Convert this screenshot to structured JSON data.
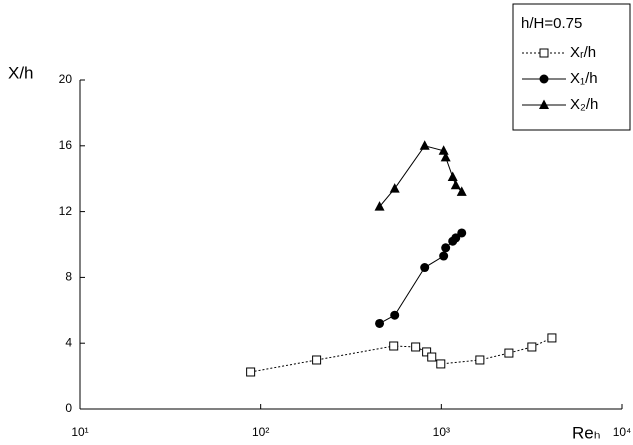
{
  "chart_data": {
    "type": "line",
    "xscale": "log",
    "grid": false,
    "xlabel": "Reₕ",
    "ylabel": "X/h",
    "legend_title": "h/H=0.75",
    "legend": "upper right",
    "xlim": [
      10,
      10000
    ],
    "ylim": [
      0,
      20
    ],
    "xticks": [
      {
        "value": 10,
        "label": "10¹"
      },
      {
        "value": 100,
        "label": "10²"
      },
      {
        "value": 1000,
        "label": "10³"
      },
      {
        "value": 10000,
        "label": "10⁴"
      }
    ],
    "yticks": [
      0,
      4,
      8,
      12,
      16,
      20
    ],
    "series": [
      {
        "name": "Xᵣ/h",
        "color": "#000000",
        "marker": "open-square",
        "linestyle": "dotted",
        "x": [
          88,
          204,
          545,
          721,
          829,
          885,
          993,
          1634,
          2366,
          3170,
          4093
        ],
        "values": [
          2.25,
          2.98,
          3.83,
          3.77,
          3.47,
          3.16,
          2.74,
          2.98,
          3.4,
          3.77,
          4.32
        ]
      },
      {
        "name": "X₁/h",
        "color": "#000000",
        "marker": "circle",
        "linestyle": "solid",
        "x": [
          455,
          552,
          809,
          1030,
          1057,
          1156,
          1202,
          1297
        ],
        "values": [
          5.2,
          5.7,
          8.6,
          9.3,
          9.8,
          10.2,
          10.4,
          10.7
        ]
      },
      {
        "name": "X₂/h",
        "color": "#000000",
        "marker": "triangle",
        "linestyle": "solid",
        "x": [
          455,
          552,
          809,
          1030,
          1057,
          1156,
          1202,
          1297
        ],
        "values": [
          12.3,
          13.4,
          16.0,
          15.7,
          15.3,
          14.1,
          13.6,
          13.2
        ]
      }
    ]
  }
}
